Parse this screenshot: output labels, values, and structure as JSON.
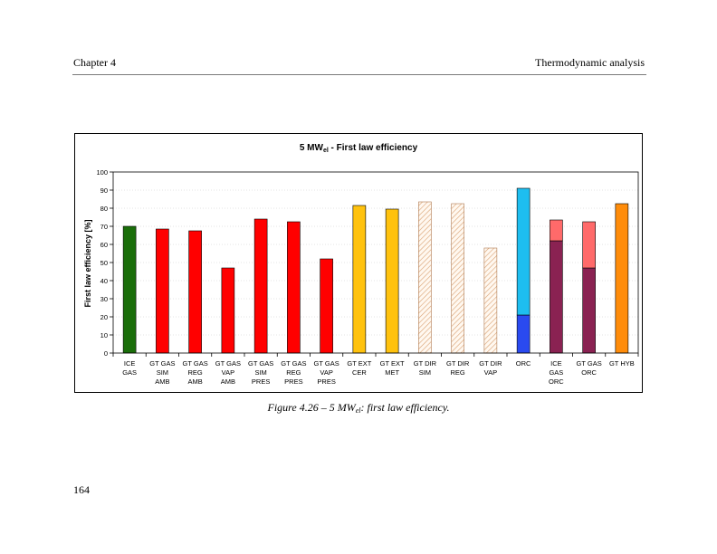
{
  "header": {
    "chapter": "Chapter 4",
    "section": "Thermodynamic analysis"
  },
  "caption": {
    "prefix": "Figure 4.26 – 5 MW",
    "sub": "el",
    "suffix": ": first law efficiency."
  },
  "page_number": "164",
  "colors": {
    "green": "#1a6e0a",
    "red": "#ff0000",
    "yellow": "#ffc20e",
    "hatch": "#e8b890",
    "blue_top": "#1ebef0",
    "blue_bottom": "#2a4af0",
    "pink": "#ff6a6a",
    "purple": "#8a2252",
    "orange": "#ff8c0a"
  },
  "chart_data": {
    "type": "bar",
    "title_main": "5 MW",
    "title_sub": "el",
    "title_rest": " - First law efficiency",
    "ylabel": "First law efficiency [%]",
    "ylim": [
      0,
      100
    ],
    "yticks": [
      0,
      10,
      20,
      30,
      40,
      50,
      60,
      70,
      80,
      90,
      100
    ],
    "categories": [
      [
        "ICE",
        "GAS"
      ],
      [
        "GT GAS",
        "SIM",
        "AMB"
      ],
      [
        "GT GAS",
        "REG",
        "AMB"
      ],
      [
        "GT GAS",
        "VAP",
        "AMB"
      ],
      [
        "GT GAS",
        "SIM",
        "PRES"
      ],
      [
        "GT GAS",
        "REG",
        "PRES"
      ],
      [
        "GT GAS",
        "VAP",
        "PRES"
      ],
      [
        "GT EXT",
        "CER"
      ],
      [
        "GT EXT",
        "MET"
      ],
      [
        "GT DIR",
        "SIM"
      ],
      [
        "GT DIR",
        "REG"
      ],
      [
        "GT DIR",
        "VAP"
      ],
      [
        "ORC"
      ],
      [
        "ICE",
        "GAS",
        "ORC"
      ],
      [
        "GT GAS",
        "ORC"
      ],
      [
        "GT HYB"
      ]
    ],
    "bars": [
      {
        "total": 70,
        "base": null,
        "color": "green"
      },
      {
        "total": 68.5,
        "base": null,
        "color": "red"
      },
      {
        "total": 67.5,
        "base": null,
        "color": "red"
      },
      {
        "total": 47,
        "base": null,
        "color": "red"
      },
      {
        "total": 74,
        "base": null,
        "color": "red"
      },
      {
        "total": 72.5,
        "base": null,
        "color": "red"
      },
      {
        "total": 52,
        "base": null,
        "color": "red"
      },
      {
        "total": 81.5,
        "base": null,
        "color": "yellow"
      },
      {
        "total": 79.5,
        "base": null,
        "color": "yellow"
      },
      {
        "total": 83.5,
        "base": null,
        "color": "hatch"
      },
      {
        "total": 82.5,
        "base": null,
        "color": "hatch"
      },
      {
        "total": 58,
        "base": null,
        "color": "hatch"
      },
      {
        "total": 91,
        "base": 21,
        "color": "blue_top",
        "base_color": "blue_bottom"
      },
      {
        "total": 73.5,
        "base": 62,
        "color": "pink",
        "base_color": "purple"
      },
      {
        "total": 72.5,
        "base": 47,
        "color": "pink",
        "base_color": "purple"
      },
      {
        "total": 82.5,
        "base": null,
        "color": "orange"
      }
    ]
  }
}
